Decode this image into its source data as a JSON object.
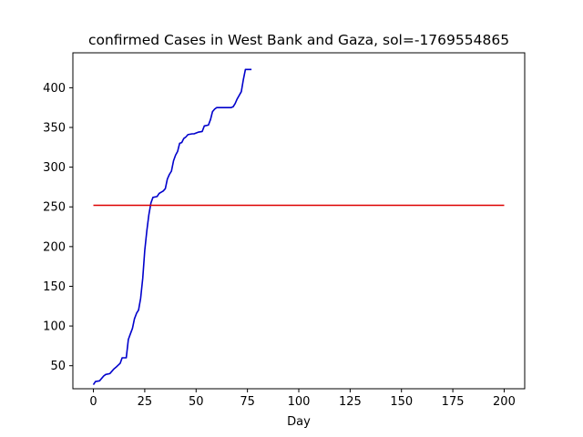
{
  "chart_data": {
    "type": "line",
    "title": "confirmed Cases in West Bank and Gaza, sol=-1769554865",
    "xlabel": "Day",
    "ylabel": "",
    "xlim": [
      -10,
      210
    ],
    "ylim": [
      21,
      444
    ],
    "x_ticks": [
      0,
      25,
      50,
      75,
      100,
      125,
      150,
      175,
      200
    ],
    "y_ticks": [
      50,
      100,
      150,
      200,
      250,
      300,
      350,
      400
    ],
    "grid": false,
    "legend": "none",
    "series": [
      {
        "color": "#0000cc",
        "points": [
          [
            0,
            26
          ],
          [
            1,
            30
          ],
          [
            3,
            31
          ],
          [
            5,
            37
          ],
          [
            6,
            39
          ],
          [
            8,
            40
          ],
          [
            9,
            43
          ],
          [
            10,
            46
          ],
          [
            11,
            48
          ],
          [
            13,
            53
          ],
          [
            14,
            60
          ],
          [
            16,
            60
          ],
          [
            17,
            83
          ],
          [
            18,
            90
          ],
          [
            19,
            97
          ],
          [
            20,
            109
          ],
          [
            21,
            116
          ],
          [
            22,
            120
          ],
          [
            23,
            135
          ],
          [
            24,
            160
          ],
          [
            25,
            195
          ],
          [
            26,
            220
          ],
          [
            27,
            240
          ],
          [
            28,
            255
          ],
          [
            29,
            262
          ],
          [
            31,
            263
          ],
          [
            32,
            267
          ],
          [
            34,
            270
          ],
          [
            35,
            273
          ],
          [
            36,
            285
          ],
          [
            37,
            291
          ],
          [
            38,
            295
          ],
          [
            39,
            308
          ],
          [
            40,
            315
          ],
          [
            41,
            320
          ],
          [
            42,
            330
          ],
          [
            43,
            331
          ],
          [
            44,
            336
          ],
          [
            45,
            338
          ],
          [
            46,
            341
          ],
          [
            48,
            342
          ],
          [
            49,
            342
          ],
          [
            51,
            344
          ],
          [
            53,
            345
          ],
          [
            54,
            352
          ],
          [
            56,
            353
          ],
          [
            57,
            360
          ],
          [
            58,
            370
          ],
          [
            59,
            373
          ],
          [
            60,
            375
          ],
          [
            62,
            375
          ],
          [
            65,
            375
          ],
          [
            67,
            375
          ],
          [
            68,
            376
          ],
          [
            69,
            380
          ],
          [
            70,
            386
          ],
          [
            72,
            395
          ],
          [
            73,
            410
          ],
          [
            74,
            423
          ],
          [
            77,
            423
          ]
        ]
      },
      {
        "color": "#dd0000",
        "points": [
          [
            0,
            252
          ],
          [
            200,
            252
          ]
        ]
      }
    ]
  }
}
